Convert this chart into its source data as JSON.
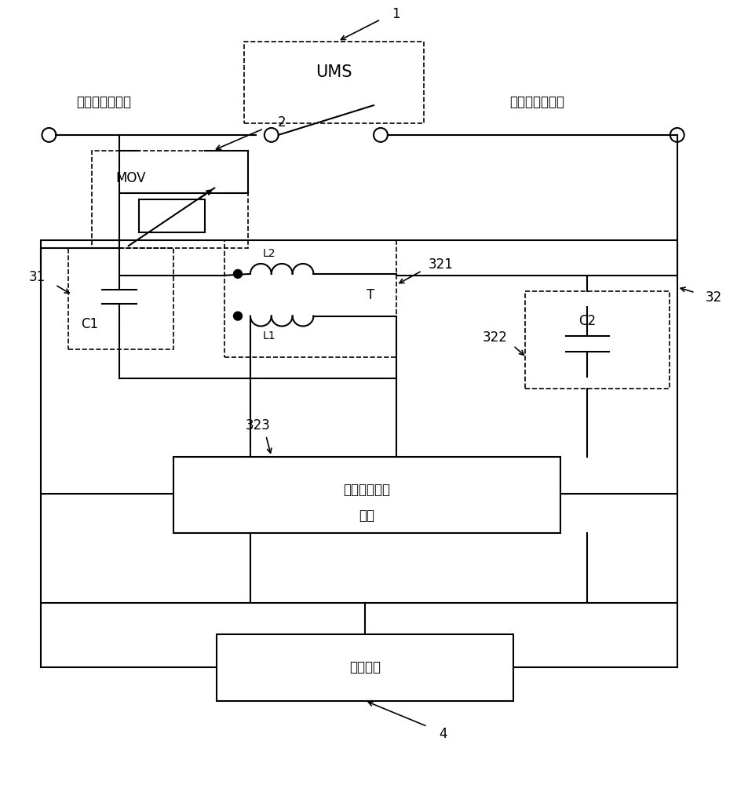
{
  "bg_color": "#ffffff",
  "line_color": "#000000",
  "fig_width": 9.54,
  "fig_height": 10.0,
  "labels": {
    "left_terminal": "换流侧电力线路",
    "right_terminal": "线路侧电力线路",
    "UMS": "UMS",
    "MOV": "MOV",
    "C1": "C1",
    "C2": "C2",
    "L1": "L1",
    "L2": "L2",
    "T": "T",
    "excitation_line1": "激励电压变换",
    "excitation_line2": "单元",
    "charger": "充电装置",
    "ref1": "1",
    "ref2": "2",
    "ref31": "31",
    "ref32": "32",
    "ref321": "321",
    "ref322": "322",
    "ref323": "323",
    "ref4": "4"
  }
}
